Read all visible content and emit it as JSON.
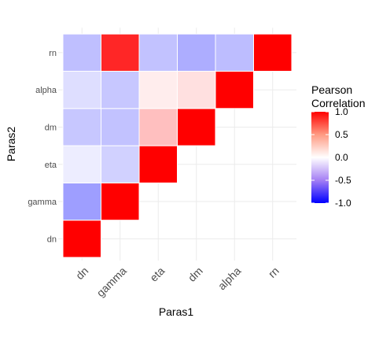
{
  "chart_data": {
    "type": "heatmap",
    "xlabel": "Paras1",
    "ylabel": "Paras2",
    "x_categories": [
      "dn",
      "gamma",
      "eta",
      "dm",
      "alpha",
      "rn"
    ],
    "y_categories": [
      "dn",
      "gamma",
      "eta",
      "dm",
      "alpha",
      "rn"
    ],
    "cells": [
      {
        "x": "dn",
        "y": "dn",
        "value": 1.0
      },
      {
        "x": "dn",
        "y": "gamma",
        "value": -0.38
      },
      {
        "x": "dn",
        "y": "eta",
        "value": -0.07
      },
      {
        "x": "dn",
        "y": "dm",
        "value": -0.22
      },
      {
        "x": "dn",
        "y": "alpha",
        "value": -0.13
      },
      {
        "x": "dn",
        "y": "rn",
        "value": -0.25
      },
      {
        "x": "gamma",
        "y": "gamma",
        "value": 1.0
      },
      {
        "x": "gamma",
        "y": "eta",
        "value": -0.18
      },
      {
        "x": "gamma",
        "y": "dm",
        "value": -0.24
      },
      {
        "x": "gamma",
        "y": "alpha",
        "value": -0.22
      },
      {
        "x": "gamma",
        "y": "rn",
        "value": 0.85
      },
      {
        "x": "eta",
        "y": "eta",
        "value": 1.0
      },
      {
        "x": "eta",
        "y": "dm",
        "value": 0.25
      },
      {
        "x": "eta",
        "y": "alpha",
        "value": 0.07
      },
      {
        "x": "eta",
        "y": "rn",
        "value": -0.24
      },
      {
        "x": "dm",
        "y": "dm",
        "value": 1.0
      },
      {
        "x": "dm",
        "y": "alpha",
        "value": 0.12
      },
      {
        "x": "dm",
        "y": "rn",
        "value": -0.32
      },
      {
        "x": "alpha",
        "y": "alpha",
        "value": 1.0
      },
      {
        "x": "alpha",
        "y": "rn",
        "value": -0.26
      },
      {
        "x": "rn",
        "y": "rn",
        "value": 1.0
      }
    ],
    "legend": {
      "title_line1": "Pearson",
      "title_line2": "Correlation",
      "ticks": [
        {
          "label": "1.0",
          "value": 1.0
        },
        {
          "label": "0.5",
          "value": 0.5
        },
        {
          "label": "0.0",
          "value": 0.0
        },
        {
          "label": "-0.5",
          "value": -0.5
        },
        {
          "label": "-1.0",
          "value": -1.0
        }
      ],
      "placement": "right"
    },
    "limits": [
      -1,
      1
    ],
    "colors": {
      "low": "#0000ff",
      "mid": "#ffffff",
      "high": "#ff0000"
    },
    "grid": true
  }
}
